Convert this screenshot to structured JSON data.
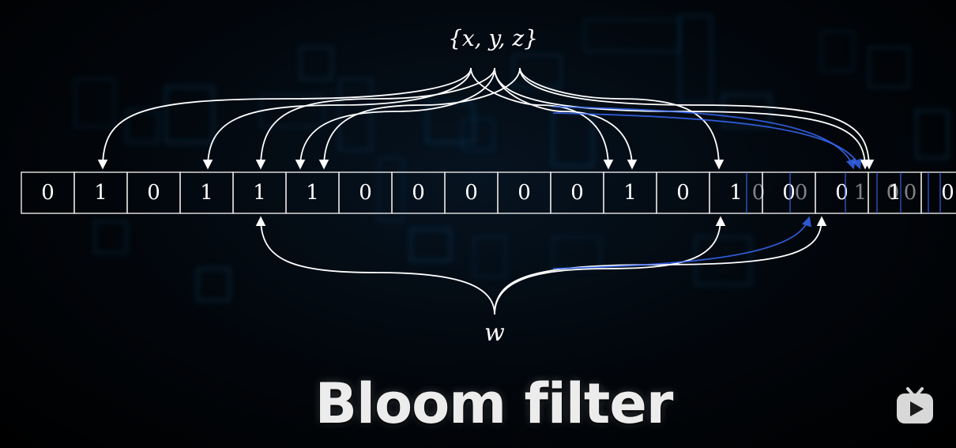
{
  "diagram": {
    "set_label": "{x, y, z}",
    "query_label": "w",
    "bits": [
      "0",
      "1",
      "0",
      "1",
      "1",
      "1",
      "0",
      "0",
      "0",
      "0",
      "0",
      "1",
      "0",
      "1",
      "0",
      "0",
      "1",
      "0"
    ],
    "overlay_bits": [
      "0",
      "0",
      "1",
      "0",
      "0"
    ],
    "caption": "Bloom filter",
    "colors": {
      "background": "#000000",
      "line": "#ffffff",
      "blue_trail": "#3a6cff",
      "tile": "#1a6fa8"
    }
  },
  "logo": {
    "icon": "tv-play-icon"
  }
}
